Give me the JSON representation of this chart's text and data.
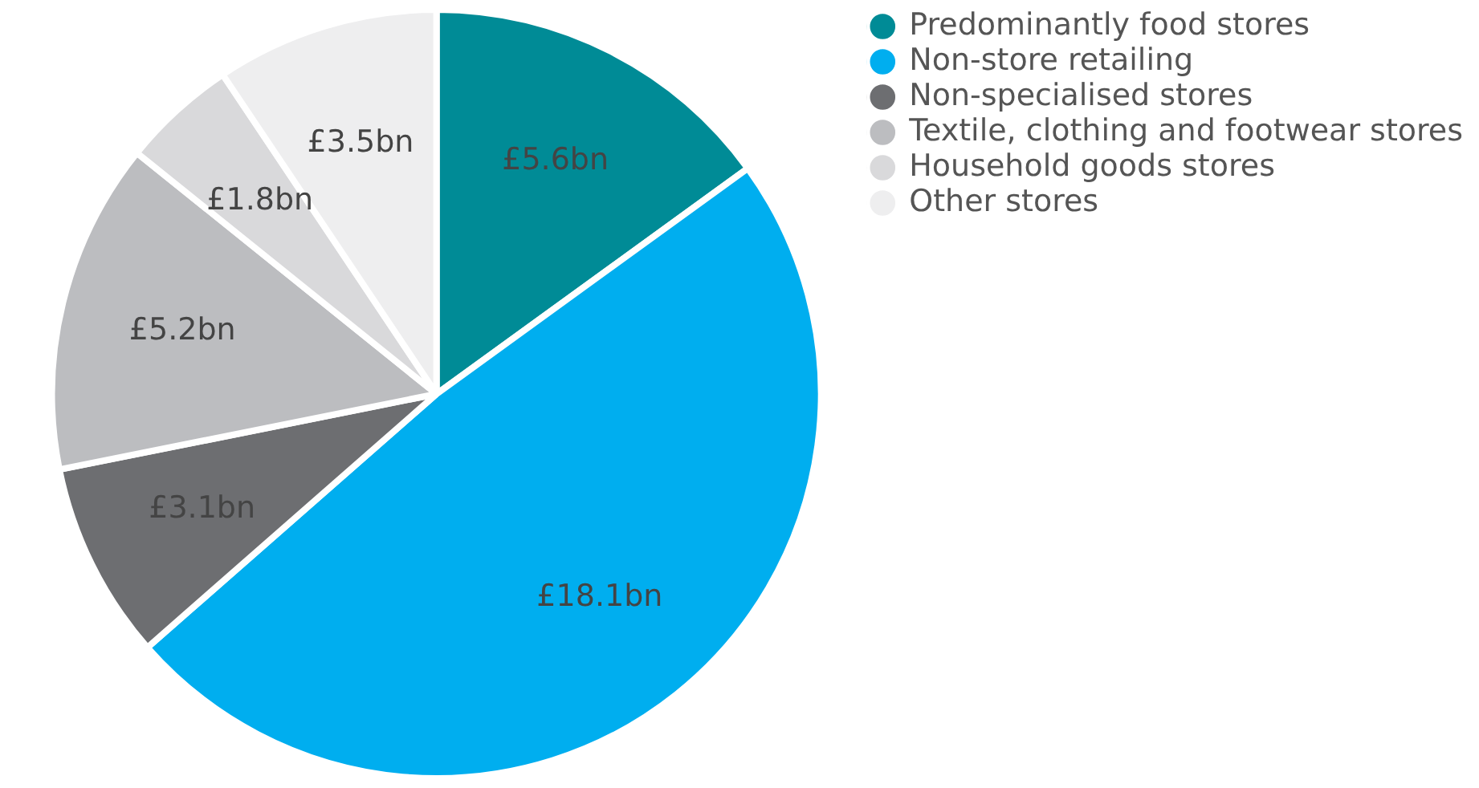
{
  "chart_data": {
    "type": "pie",
    "categories": [
      "Predominantly food stores",
      "Non-store retailing",
      "Non-specialised stores",
      "Textile, clothing and footwear stores",
      "Household goods stores",
      "Other stores"
    ],
    "values": [
      5.6,
      18.1,
      3.1,
      5.2,
      1.8,
      3.5
    ],
    "value_labels": [
      "£5.6bn",
      "£18.1bn",
      "£3.1bn",
      "£5.2bn",
      "£1.8bn",
      "£3.5bn"
    ],
    "colors": [
      "#008b96",
      "#00aeef",
      "#6d6e71",
      "#bcbdc0",
      "#d9d9db",
      "#eeeeef"
    ],
    "legend": "top right"
  }
}
